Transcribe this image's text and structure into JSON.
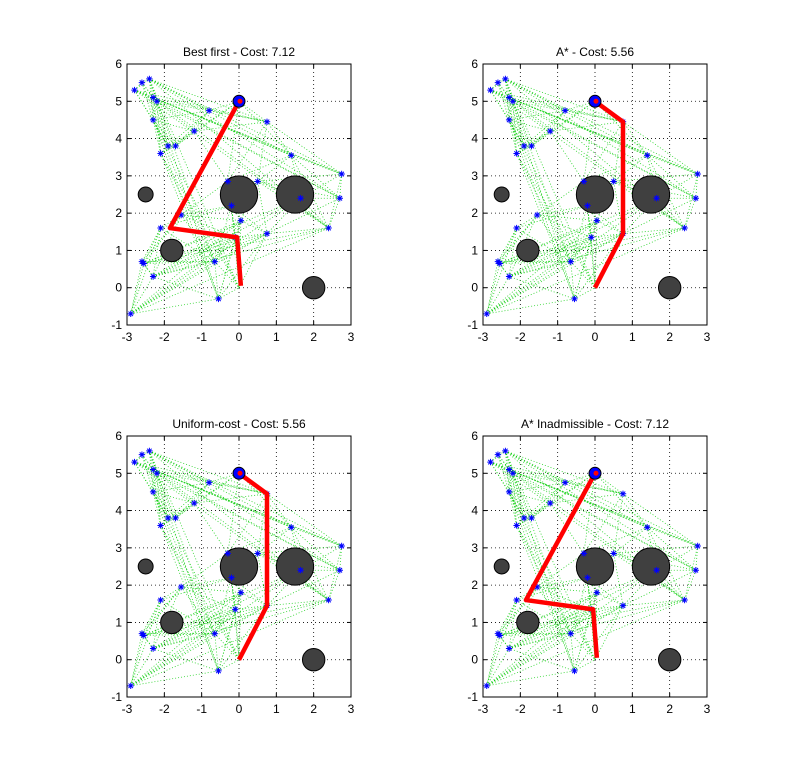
{
  "chart_data": [
    {
      "type": "scatter",
      "title": "Best first - Cost: 7.12",
      "xlim": [
        -3,
        3
      ],
      "ylim": [
        -1,
        6
      ],
      "xticks": [
        -3,
        -2,
        -1,
        0,
        1,
        2,
        3
      ],
      "yticks": [
        -1,
        0,
        1,
        2,
        3,
        4,
        5,
        6
      ],
      "grid": true,
      "path": [
        [
          0,
          5
        ],
        [
          -1.85,
          1.6
        ],
        [
          -0.05,
          1.35
        ],
        [
          0.05,
          0.05
        ]
      ]
    },
    {
      "type": "scatter",
      "title": "A* - Cost: 5.56",
      "xlim": [
        -3,
        3
      ],
      "ylim": [
        -1,
        6
      ],
      "xticks": [
        -3,
        -2,
        -1,
        0,
        1,
        2,
        3
      ],
      "yticks": [
        -1,
        0,
        1,
        2,
        3,
        4,
        5,
        6
      ],
      "grid": true,
      "path": [
        [
          0,
          5
        ],
        [
          0.75,
          4.45
        ],
        [
          0.75,
          1.45
        ],
        [
          0,
          0
        ]
      ]
    },
    {
      "type": "scatter",
      "title": "Uniform-cost - Cost: 5.56",
      "xlim": [
        -3,
        3
      ],
      "ylim": [
        -1,
        6
      ],
      "xticks": [
        -3,
        -2,
        -1,
        0,
        1,
        2,
        3
      ],
      "yticks": [
        -1,
        0,
        1,
        2,
        3,
        4,
        5,
        6
      ],
      "grid": true,
      "path": [
        [
          0,
          5
        ],
        [
          0.75,
          4.45
        ],
        [
          0.75,
          1.45
        ],
        [
          0,
          0
        ]
      ]
    },
    {
      "type": "scatter",
      "title": "A* Inadmissible - Cost: 7.12",
      "xlim": [
        -3,
        3
      ],
      "ylim": [
        -1,
        6
      ],
      "xticks": [
        -3,
        -2,
        -1,
        0,
        1,
        2,
        3
      ],
      "yticks": [
        -1,
        0,
        1,
        2,
        3,
        4,
        5,
        6
      ],
      "grid": true,
      "path": [
        [
          0,
          5
        ],
        [
          -1.85,
          1.6
        ],
        [
          -0.05,
          1.35
        ],
        [
          0.05,
          0.05
        ]
      ]
    }
  ],
  "shared": {
    "obstacles": [
      {
        "x": 0,
        "y": 2.5,
        "r": 0.5
      },
      {
        "x": 1.5,
        "y": 2.5,
        "r": 0.5
      },
      {
        "x": -2.5,
        "y": 2.5,
        "r": 0.2
      },
      {
        "x": -1.8,
        "y": 1,
        "r": 0.3
      },
      {
        "x": 2,
        "y": 0,
        "r": 0.3
      }
    ],
    "nodes": [
      [
        -2.8,
        5.3
      ],
      [
        -2.6,
        5.5
      ],
      [
        -2.4,
        5.6
      ],
      [
        -2.3,
        5.1
      ],
      [
        -2.2,
        5.0
      ],
      [
        -2.3,
        4.5
      ],
      [
        -1.7,
        3.8
      ],
      [
        -1.2,
        4.2
      ],
      [
        -0.8,
        4.75
      ],
      [
        -2.1,
        3.6
      ],
      [
        -1.9,
        3.8
      ],
      [
        0.75,
        4.45
      ],
      [
        1.4,
        3.55
      ],
      [
        2.75,
        3.05
      ],
      [
        2.7,
        2.4
      ],
      [
        2.4,
        1.6
      ],
      [
        1.65,
        2.4
      ],
      [
        0.75,
        1.45
      ],
      [
        0.5,
        2.85
      ],
      [
        -0.3,
        2.85
      ],
      [
        -0.2,
        2.2
      ],
      [
        0.05,
        1.8
      ],
      [
        -0.1,
        1.35
      ],
      [
        -1.55,
        1.95
      ],
      [
        -2.1,
        1.6
      ],
      [
        -0.65,
        0.7
      ],
      [
        -2.55,
        0.65
      ],
      [
        -2.6,
        0.7
      ],
      [
        -2.3,
        0.3
      ],
      [
        -0.55,
        -0.3
      ],
      [
        -2.9,
        -0.7
      ]
    ],
    "start": [
      0,
      0
    ],
    "goal": [
      0,
      5
    ],
    "colors": {
      "path": "#ff0000",
      "obstacle": "#404040",
      "node": "#0000ff",
      "edges": "#00cc00",
      "goal_marker": "#0000ff"
    }
  }
}
